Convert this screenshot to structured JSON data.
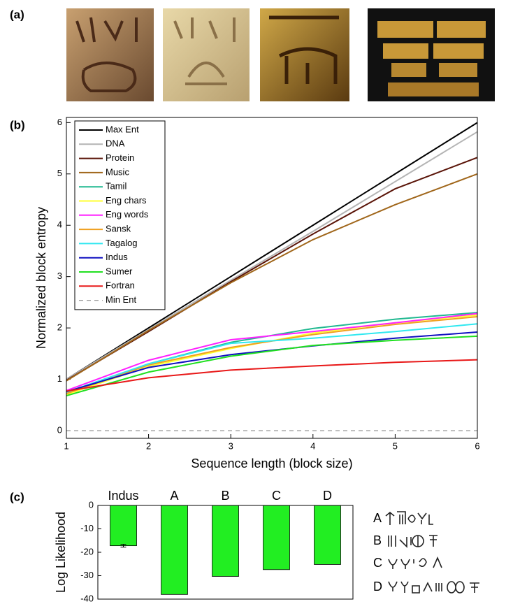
{
  "panel_a": {
    "label": "(a)"
  },
  "chart_data": [
    {
      "type": "line",
      "panel_label": "(b)",
      "x_label": "Sequence length (block size)",
      "y_label": "Normalized block entropy",
      "x": [
        1,
        2,
        3,
        4,
        5,
        6
      ],
      "xlim": [
        1,
        6
      ],
      "xticks": [
        1,
        2,
        3,
        4,
        5,
        6
      ],
      "ylim": [
        -0.15,
        6.1
      ],
      "yticks": [
        0,
        1,
        2,
        3,
        4,
        5,
        6
      ],
      "legend": "upper-left",
      "series": [
        {
          "name": "Max Ent",
          "color": "#000000",
          "values": [
            1,
            2,
            3,
            4,
            5,
            6
          ]
        },
        {
          "name": "DNA",
          "color": "#b4b4b4",
          "values": [
            1,
            1.97,
            2.93,
            3.88,
            4.85,
            5.82
          ]
        },
        {
          "name": "Protein",
          "color": "#5a1408",
          "values": [
            0.98,
            1.93,
            2.9,
            3.83,
            4.71,
            5.32
          ]
        },
        {
          "name": "Music",
          "color": "#a0661a",
          "values": [
            0.97,
            1.95,
            2.88,
            3.72,
            4.4,
            5.0
          ]
        },
        {
          "name": "Tamil",
          "color": "#20b890",
          "values": [
            0.72,
            1.3,
            1.72,
            1.99,
            2.17,
            2.3
          ]
        },
        {
          "name": "Eng chars",
          "color": "#ffff30",
          "values": [
            0.7,
            1.25,
            1.6,
            1.9,
            2.1,
            2.25
          ]
        },
        {
          "name": "Eng words",
          "color": "#ff20ff",
          "values": [
            0.78,
            1.37,
            1.77,
            1.93,
            2.1,
            2.28
          ]
        },
        {
          "name": "Sansk",
          "color": "#f0a020",
          "values": [
            0.72,
            1.28,
            1.62,
            1.87,
            2.07,
            2.22
          ]
        },
        {
          "name": "Tagalog",
          "color": "#30e8f0",
          "values": [
            0.75,
            1.3,
            1.7,
            1.8,
            1.93,
            2.08
          ]
        },
        {
          "name": "Indus",
          "color": "#1010c0",
          "values": [
            0.76,
            1.23,
            1.48,
            1.65,
            1.8,
            1.92
          ]
        },
        {
          "name": "Sumer",
          "color": "#20e020",
          "values": [
            0.68,
            1.14,
            1.45,
            1.66,
            1.76,
            1.84
          ]
        },
        {
          "name": "Fortran",
          "color": "#e81818",
          "values": [
            0.77,
            1.03,
            1.18,
            1.26,
            1.33,
            1.38
          ]
        },
        {
          "name": "Min Ent",
          "color": "#999999",
          "dashed": true,
          "values": [
            0,
            0,
            0,
            0,
            0,
            0
          ]
        }
      ]
    },
    {
      "type": "bar",
      "panel_label": "(c)",
      "y_label": "Log Likelihood",
      "categories": [
        "Indus",
        "A",
        "B",
        "C",
        "D"
      ],
      "values": [
        -17.2,
        -38,
        -30.3,
        -27.4,
        -25.2
      ],
      "errors": [
        0.6,
        null,
        null,
        null,
        null
      ],
      "color": "#22ee22",
      "ylim": [
        -40,
        0
      ],
      "yticks": [
        0,
        -10,
        -20,
        -30,
        -40
      ]
    }
  ]
}
